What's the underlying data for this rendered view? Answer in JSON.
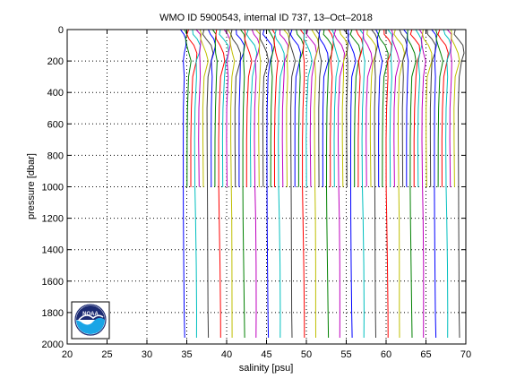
{
  "chart_data": {
    "type": "line",
    "title": "WMO ID 5900543, internal ID 737, 13–Oct–2018",
    "xlabel": "salinity [psu]",
    "ylabel": "pressure [dbar]",
    "xlim": [
      20,
      70
    ],
    "ylim": [
      2000,
      0
    ],
    "y_reversed": true,
    "grid": true,
    "xticks": [
      20,
      25,
      30,
      35,
      40,
      45,
      50,
      55,
      60,
      65,
      70
    ],
    "yticks": [
      0,
      200,
      400,
      600,
      800,
      1000,
      1200,
      1400,
      1600,
      1800,
      2000
    ],
    "series_note": "",
    "series_colors": [
      "#0000ff",
      "#008000",
      "#ff0000",
      "#00bfbf",
      "#bf00bf",
      "#bfbf00",
      "#404040"
    ],
    "profile": {
      "pressure": [
        0,
        30,
        60,
        100,
        150,
        200,
        300,
        500,
        700,
        1000,
        1200,
        1500,
        1800,
        1960
      ],
      "salinity": [
        34.2,
        34.35,
        34.55,
        34.85,
        34.95,
        34.9,
        34.7,
        34.55,
        34.52,
        34.55,
        34.6,
        34.66,
        34.7,
        34.72
      ]
    },
    "offset_step": 0.5,
    "n_profiles": 70,
    "deep_profile_every": 3
  },
  "logo": {
    "text": "NOAA",
    "colors": {
      "navy": "#1b2a72",
      "sky": "#1aa5e6",
      "white": "#ffffff"
    }
  }
}
